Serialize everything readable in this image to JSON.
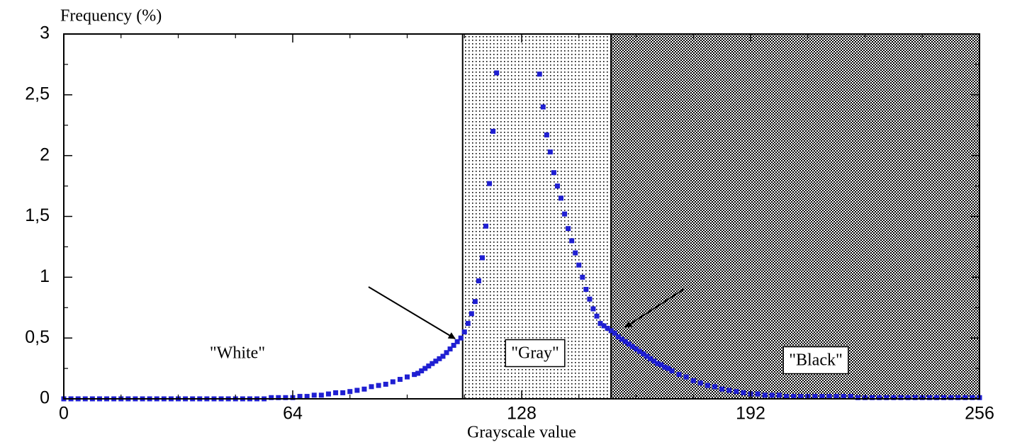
{
  "chart_data": {
    "type": "scatter",
    "ylabel": "Frequency (%)",
    "xlabel": "Grayscale value",
    "xlim": [
      0,
      256
    ],
    "xticks": [
      0,
      64,
      128,
      192,
      256
    ],
    "ylim": [
      0,
      3
    ],
    "yticks": [
      0,
      {
        "value": 0.5,
        "label": "0,5"
      },
      1,
      {
        "value": 1.5,
        "label": "1,5"
      },
      2,
      {
        "value": 2.5,
        "label": "2,5"
      },
      3
    ],
    "regions": [
      {
        "name": "\"White\"",
        "x": [
          0,
          111.5
        ]
      },
      {
        "name": "\"Gray\"",
        "x": [
          111.5,
          153
        ]
      },
      {
        "name": "\"Black\"",
        "x": [
          153,
          256
        ]
      }
    ],
    "color": "#1f1fd2",
    "x": [
      0,
      2,
      4,
      6,
      8,
      10,
      12,
      14,
      16,
      18,
      20,
      22,
      24,
      26,
      28,
      30,
      32,
      34,
      36,
      38,
      40,
      42,
      44,
      46,
      48,
      50,
      52,
      54,
      56,
      58,
      60,
      62,
      64,
      66,
      68,
      70,
      72,
      74,
      76,
      78,
      80,
      82,
      84,
      86,
      88,
      90,
      92,
      94,
      96,
      98,
      99,
      100,
      101,
      102,
      103,
      104,
      105,
      106,
      107,
      108,
      109,
      110,
      111,
      112,
      113,
      114,
      115,
      116,
      117,
      118,
      119,
      120,
      121,
      133,
      134,
      135,
      136,
      137,
      138,
      139,
      140,
      141,
      142,
      143,
      144,
      145,
      146,
      147,
      148,
      149,
      150,
      151,
      152,
      153,
      154,
      155,
      156,
      157,
      158,
      159,
      160,
      161,
      162,
      163,
      164,
      165,
      166,
      167,
      168,
      169,
      170,
      172,
      174,
      176,
      178,
      180,
      182,
      184,
      186,
      188,
      190,
      192,
      194,
      196,
      198,
      200,
      202,
      204,
      206,
      208,
      210,
      212,
      214,
      216,
      218,
      220,
      222,
      224,
      226,
      228,
      230,
      232,
      234,
      236,
      238,
      240,
      242,
      244,
      246,
      248,
      250,
      252,
      254,
      256
    ],
    "values": [
      0,
      0,
      0,
      0,
      0,
      0,
      0,
      0,
      0,
      0,
      0,
      0,
      0,
      0,
      0,
      0,
      0,
      0,
      0,
      0,
      0,
      0,
      0,
      0,
      0,
      0,
      0,
      0,
      0,
      0.01,
      0.01,
      0.01,
      0.01,
      0.02,
      0.02,
      0.03,
      0.03,
      0.04,
      0.05,
      0.05,
      0.06,
      0.07,
      0.08,
      0.1,
      0.11,
      0.12,
      0.14,
      0.16,
      0.18,
      0.2,
      0.21,
      0.23,
      0.25,
      0.27,
      0.29,
      0.31,
      0.33,
      0.35,
      0.38,
      0.41,
      0.44,
      0.47,
      0.5,
      0.55,
      0.62,
      0.7,
      0.8,
      0.97,
      1.16,
      1.42,
      1.77,
      2.2,
      2.68,
      2.67,
      2.4,
      2.17,
      2.03,
      1.86,
      1.75,
      1.65,
      1.52,
      1.4,
      1.3,
      1.2,
      1.1,
      1.0,
      0.9,
      0.82,
      0.74,
      0.68,
      0.62,
      0.6,
      0.58,
      0.56,
      0.54,
      0.51,
      0.49,
      0.47,
      0.45,
      0.43,
      0.41,
      0.39,
      0.37,
      0.35,
      0.33,
      0.31,
      0.29,
      0.28,
      0.26,
      0.25,
      0.23,
      0.2,
      0.18,
      0.15,
      0.13,
      0.11,
      0.1,
      0.08,
      0.07,
      0.06,
      0.05,
      0.04,
      0.04,
      0.03,
      0.03,
      0.03,
      0.02,
      0.02,
      0.02,
      0.02,
      0.02,
      0.02,
      0.02,
      0.02,
      0.02,
      0.02,
      0.01,
      0.01,
      0.01,
      0.01,
      0.01,
      0.01,
      0.01,
      0.01,
      0.01,
      0.01,
      0.01,
      0.01,
      0.01,
      0.01,
      0.01,
      0.01,
      0.01,
      0.01
    ]
  }
}
